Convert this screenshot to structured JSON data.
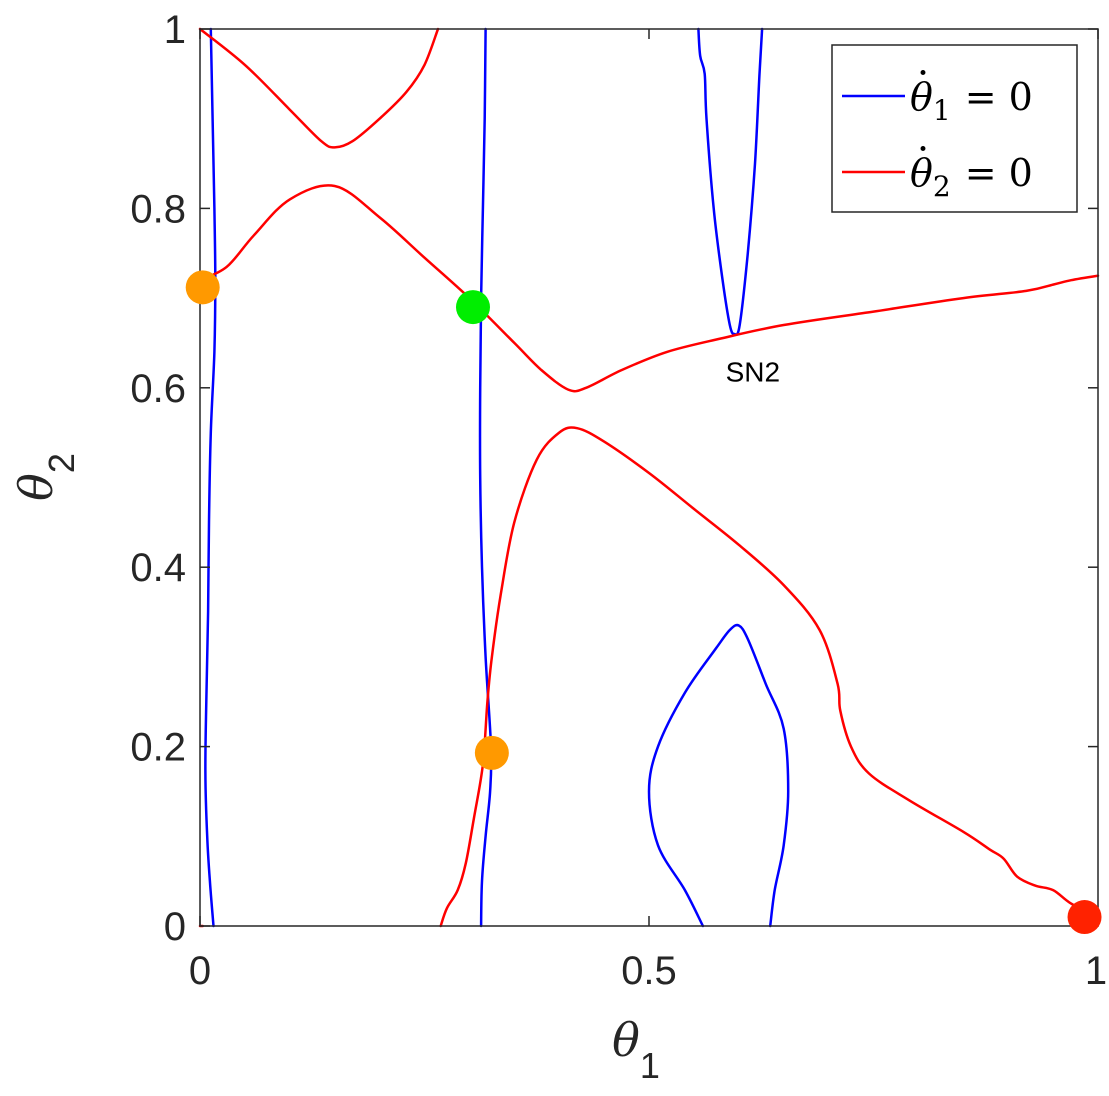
{
  "chart_data": {
    "type": "line",
    "title": "",
    "xlabel": {
      "symbol": "θ",
      "subscript": "1"
    },
    "ylabel": {
      "symbol": "θ",
      "subscript": "2"
    },
    "xlim": [
      0,
      1
    ],
    "ylim": [
      0,
      1
    ],
    "xticks": [
      0,
      0.5,
      1
    ],
    "xtick_labels": [
      "0",
      "0.5",
      "1"
    ],
    "yticks": [
      0,
      0.2,
      0.4,
      0.6,
      0.8,
      1
    ],
    "ytick_labels": [
      "0",
      "0.2",
      "0.4",
      "0.6",
      "0.8",
      "1"
    ],
    "grid": false,
    "legend": {
      "placement": "top-right",
      "entries": [
        {
          "series": "theta1_nullcline",
          "symbol": "θ",
          "dot": "·",
          "subscript": "1",
          "equation": "= 0"
        },
        {
          "series": "theta2_nullcline",
          "symbol": "θ",
          "dot": "·",
          "subscript": "2",
          "equation": "= 0"
        }
      ]
    },
    "series": [
      {
        "id": "theta1_nullcline",
        "color": "#0000ff",
        "segments": [
          [
            [
              0.012,
              1.0
            ],
            [
              0.014,
              0.9
            ],
            [
              0.016,
              0.8
            ],
            [
              0.017,
              0.72
            ],
            [
              0.016,
              0.64
            ],
            [
              0.012,
              0.55
            ],
            [
              0.01,
              0.45
            ],
            [
              0.009,
              0.35
            ],
            [
              0.007,
              0.25
            ],
            [
              0.006,
              0.17
            ],
            [
              0.008,
              0.1
            ],
            [
              0.011,
              0.05
            ],
            [
              0.015,
              0.0
            ]
          ],
          [
            [
              0.318,
              1.0
            ],
            [
              0.317,
              0.9
            ],
            [
              0.315,
              0.8
            ],
            [
              0.313,
              0.7
            ],
            [
              0.312,
              0.6
            ],
            [
              0.312,
              0.5
            ],
            [
              0.314,
              0.4
            ],
            [
              0.318,
              0.3
            ],
            [
              0.324,
              0.2
            ],
            [
              0.323,
              0.15
            ],
            [
              0.318,
              0.1
            ],
            [
              0.314,
              0.05
            ],
            [
              0.313,
              0.0
            ]
          ],
          [
            [
              0.56,
              0.0
            ],
            [
              0.54,
              0.04
            ],
            [
              0.51,
              0.09
            ],
            [
              0.5,
              0.15
            ],
            [
              0.51,
              0.2
            ],
            [
              0.54,
              0.26
            ],
            [
              0.575,
              0.31
            ],
            [
              0.59,
              0.33
            ],
            [
              0.6,
              0.335
            ],
            [
              0.61,
              0.32
            ],
            [
              0.63,
              0.27
            ],
            [
              0.65,
              0.22
            ],
            [
              0.655,
              0.15
            ],
            [
              0.65,
              0.09
            ],
            [
              0.64,
              0.04
            ],
            [
              0.635,
              0.0
            ]
          ],
          [
            [
              0.555,
              1.0
            ],
            [
              0.557,
              0.97
            ],
            [
              0.562,
              0.95
            ],
            [
              0.564,
              0.9
            ],
            [
              0.572,
              0.8
            ],
            [
              0.582,
              0.72
            ],
            [
              0.59,
              0.67
            ],
            [
              0.595,
              0.66
            ],
            [
              0.601,
              0.67
            ],
            [
              0.61,
              0.75
            ],
            [
              0.618,
              0.85
            ],
            [
              0.623,
              0.95
            ],
            [
              0.626,
              1.0
            ]
          ]
        ]
      },
      {
        "id": "theta2_nullcline",
        "color": "#ff0000",
        "segments": [
          [
            [
              0.0,
              1.0
            ],
            [
              0.05,
              0.96
            ],
            [
              0.1,
              0.91
            ],
            [
              0.135,
              0.875
            ],
            [
              0.15,
              0.868
            ],
            [
              0.17,
              0.875
            ],
            [
              0.2,
              0.9
            ],
            [
              0.23,
              0.93
            ],
            [
              0.25,
              0.96
            ],
            [
              0.265,
              1.0
            ]
          ],
          [
            [
              0.0,
              0.72
            ],
            [
              0.03,
              0.735
            ],
            [
              0.06,
              0.77
            ],
            [
              0.1,
              0.81
            ],
            [
              0.15,
              0.825
            ],
            [
              0.2,
              0.79
            ],
            [
              0.25,
              0.745
            ],
            [
              0.3,
              0.7
            ],
            [
              0.35,
              0.65
            ],
            [
              0.38,
              0.62
            ],
            [
              0.41,
              0.598
            ],
            [
              0.43,
              0.6
            ],
            [
              0.47,
              0.62
            ],
            [
              0.52,
              0.64
            ],
            [
              0.58,
              0.655
            ],
            [
              0.65,
              0.67
            ],
            [
              0.75,
              0.685
            ],
            [
              0.85,
              0.7
            ],
            [
              0.92,
              0.708
            ],
            [
              0.95,
              0.715
            ],
            [
              0.97,
              0.72
            ],
            [
              1.0,
              0.725
            ]
          ],
          [
            [
              0.268,
              0.0
            ],
            [
              0.275,
              0.02
            ],
            [
              0.287,
              0.04
            ],
            [
              0.296,
              0.07
            ],
            [
              0.305,
              0.12
            ],
            [
              0.315,
              0.18
            ],
            [
              0.32,
              0.25
            ],
            [
              0.325,
              0.3
            ],
            [
              0.335,
              0.37
            ],
            [
              0.35,
              0.45
            ],
            [
              0.375,
              0.52
            ],
            [
              0.4,
              0.55
            ],
            [
              0.42,
              0.555
            ],
            [
              0.45,
              0.54
            ],
            [
              0.5,
              0.505
            ],
            [
              0.55,
              0.465
            ],
            [
              0.6,
              0.425
            ],
            [
              0.65,
              0.38
            ],
            [
              0.69,
              0.33
            ],
            [
              0.71,
              0.27
            ],
            [
              0.713,
              0.24
            ],
            [
              0.725,
              0.2
            ],
            [
              0.745,
              0.17
            ],
            [
              0.79,
              0.14
            ],
            [
              0.85,
              0.105
            ],
            [
              0.88,
              0.085
            ],
            [
              0.895,
              0.075
            ],
            [
              0.91,
              0.055
            ],
            [
              0.93,
              0.045
            ],
            [
              0.95,
              0.04
            ],
            [
              0.97,
              0.025
            ],
            [
              1.0,
              0.01
            ]
          ],
          [
            [
              0.0,
              0.0
            ],
            [
              0.003,
              0.0
            ]
          ]
        ]
      }
    ],
    "points": [
      {
        "id": "eq-orange-1",
        "x": 0.003,
        "y": 0.712,
        "color": "#ff9900"
      },
      {
        "id": "eq-green",
        "x": 0.304,
        "y": 0.69,
        "color": "#00ee00"
      },
      {
        "id": "eq-orange-2",
        "x": 0.325,
        "y": 0.193,
        "color": "#ff9900"
      },
      {
        "id": "eq-red",
        "x": 0.985,
        "y": 0.01,
        "color": "#ff2200"
      }
    ],
    "annotations": [
      {
        "text": "SN2",
        "x": 0.6,
        "y": 0.655
      }
    ]
  }
}
